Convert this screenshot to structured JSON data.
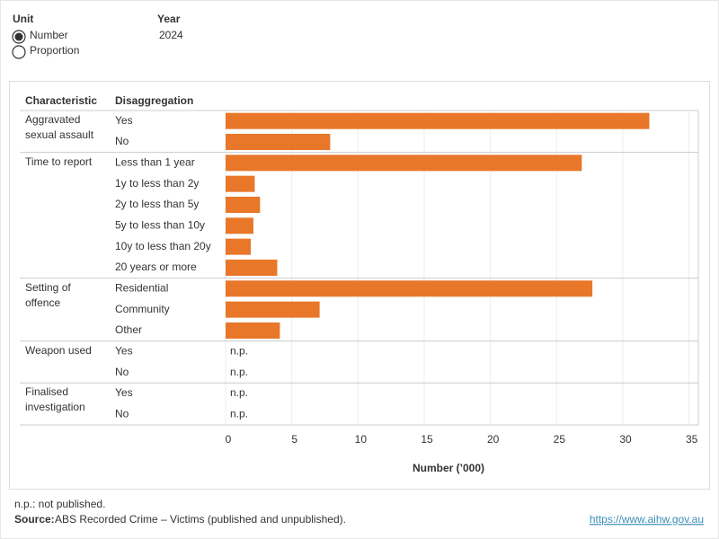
{
  "filters": {
    "unit": {
      "label": "Unit",
      "options": [
        "Number",
        "Proportion"
      ],
      "selected": 0
    },
    "year": {
      "label": "Year",
      "value": "2024"
    }
  },
  "chart_data": {
    "type": "bar",
    "orientation": "horizontal",
    "column_headers": [
      "Characteristic",
      "Disaggregation"
    ],
    "groups": [
      {
        "name": "Aggravated sexual assault",
        "categories": [
          "Yes",
          "No"
        ],
        "values": [
          32.0,
          7.9
        ]
      },
      {
        "name": "Time to report",
        "categories": [
          "Less than 1 year",
          "1y to less than 2y",
          "2y to less than 5y",
          "5y to less than 10y",
          "10y to less than 20y",
          "20 years or more"
        ],
        "values": [
          26.9,
          2.2,
          2.6,
          2.1,
          1.9,
          3.9
        ]
      },
      {
        "name": "Setting of offence",
        "categories": [
          "Residential",
          "Community",
          "Other"
        ],
        "values": [
          27.7,
          7.1,
          4.1
        ]
      },
      {
        "name": "Weapon used",
        "categories": [
          "Yes",
          "No"
        ],
        "values": [
          null,
          null
        ],
        "value_labels": [
          "n.p.",
          "n.p."
        ]
      },
      {
        "name": "Finalised investigation",
        "categories": [
          "Yes",
          "No"
        ],
        "values": [
          null,
          null
        ],
        "value_labels": [
          "n.p.",
          "n.p."
        ]
      }
    ],
    "color": "#e8772a",
    "x_label": "Number (’000)",
    "xlim": [
      0,
      35.7
    ],
    "xticks": [
      0,
      5,
      10,
      15,
      20,
      25,
      30,
      35
    ],
    "grid": true
  },
  "footer": {
    "note": "n.p.: not published.",
    "source_label": "Source:",
    "source": "ABS Recorded Crime – Victims (published and unpublished).",
    "link": "https://www.aihw.gov.au"
  }
}
